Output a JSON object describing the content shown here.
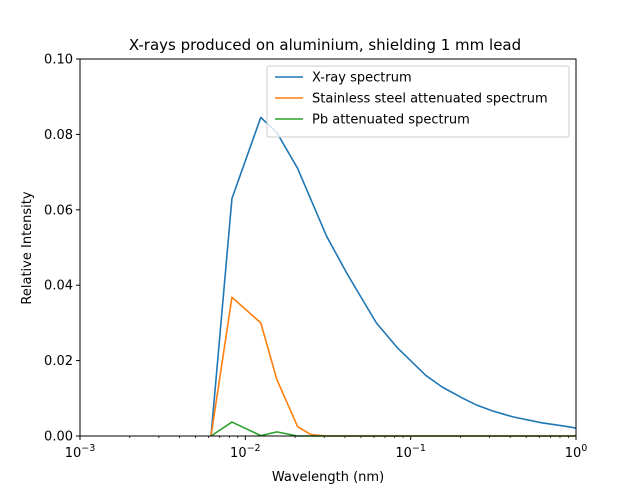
{
  "chart_data": {
    "type": "line",
    "title": "X-rays produced on aluminium, shielding 1 mm lead",
    "xlabel": "Wavelength (nm)",
    "ylabel": "Relative Intensity",
    "x_scale": "log",
    "xlim": [
      0.001,
      1
    ],
    "ylim": [
      0,
      0.1
    ],
    "grid": false,
    "legend_position": "upper right",
    "x_ticks": [
      {
        "value": 0.001,
        "base": "10",
        "exp": "−3"
      },
      {
        "value": 0.01,
        "base": "10",
        "exp": "−2"
      },
      {
        "value": 0.1,
        "base": "10",
        "exp": "−1"
      },
      {
        "value": 1,
        "base": "10",
        "exp": "0"
      }
    ],
    "y_ticks": [
      {
        "value": 0.0,
        "label": "0.00"
      },
      {
        "value": 0.02,
        "label": "0.02"
      },
      {
        "value": 0.04,
        "label": "0.04"
      },
      {
        "value": 0.06,
        "label": "0.06"
      },
      {
        "value": 0.08,
        "label": "0.08"
      },
      {
        "value": 0.1,
        "label": "0.10"
      }
    ],
    "series": [
      {
        "name": "X-ray spectrum",
        "color": "#1f77b4",
        "x": [
          0.0062,
          0.0083,
          0.0124,
          0.0155,
          0.0207,
          0.031,
          0.0413,
          0.062,
          0.0827,
          0.124,
          0.155,
          0.207,
          0.248,
          0.31,
          0.413,
          0.62,
          0.827,
          1.0
        ],
        "y": [
          0.0,
          0.063,
          0.0845,
          0.0805,
          0.071,
          0.053,
          0.043,
          0.03,
          0.0235,
          0.016,
          0.013,
          0.01,
          0.0083,
          0.0067,
          0.0051,
          0.0035,
          0.0027,
          0.0021
        ]
      },
      {
        "name": "Stainless steel attenuated spectrum",
        "color": "#ff7f0e",
        "x": [
          0.0062,
          0.0083,
          0.0124,
          0.0155,
          0.0207,
          0.0248,
          0.031,
          0.0413,
          0.062,
          0.124,
          0.248,
          0.413,
          1.0
        ],
        "y": [
          0.0,
          0.0368,
          0.03,
          0.015,
          0.0025,
          0.0004,
          0.0,
          0.0,
          0.0,
          0.0,
          0.0,
          0.0,
          0.0
        ]
      },
      {
        "name": "Pb attenuated spectrum",
        "color": "#2ca02c",
        "x": [
          0.0062,
          0.0083,
          0.0124,
          0.0155,
          0.0207,
          0.031,
          0.0413,
          0.062,
          0.124,
          0.248,
          0.413,
          1.0
        ],
        "y": [
          0.0,
          0.0037,
          0.0001,
          0.0011,
          0.0,
          0.0,
          0.0,
          0.0,
          0.0,
          0.0,
          0.0,
          0.0
        ]
      }
    ]
  }
}
